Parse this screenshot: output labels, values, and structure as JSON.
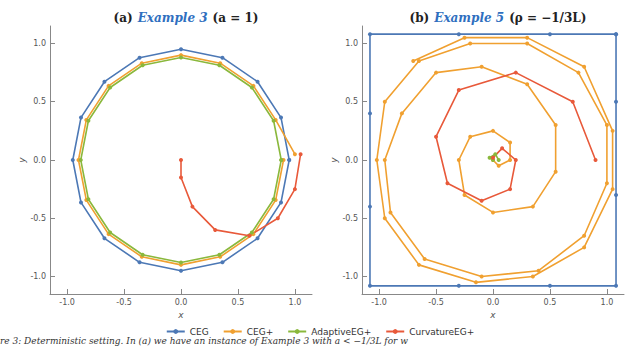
{
  "chart_data": [
    {
      "type": "line",
      "title": [
        "(a)",
        "Example 3",
        "(a = 1)"
      ],
      "x_label": "x",
      "y_label": "y",
      "xlim": [
        -1.15,
        1.15
      ],
      "ylim": [
        -1.15,
        1.15
      ],
      "xticks": [
        {
          "value": -1,
          "label": "-1.0"
        },
        {
          "value": -0.5,
          "label": "-0.5"
        },
        {
          "value": 0,
          "label": "0.0"
        },
        {
          "value": 0.5,
          "label": "0.5"
        },
        {
          "value": 1,
          "label": "1.0"
        }
      ],
      "yticks": [
        {
          "value": -1,
          "label": "-1.0"
        },
        {
          "value": -0.5,
          "label": "-0.5"
        },
        {
          "value": 0,
          "label": "0.0"
        },
        {
          "value": 0.5,
          "label": "0.5"
        },
        {
          "value": 1,
          "label": "1.0"
        }
      ],
      "legend": "bottom",
      "series": [
        {
          "name": "CEG",
          "color": "#4c78b5",
          "marker": "circle",
          "points": [
            [
              0.95,
              0
            ],
            [
              0.878,
              0.364
            ],
            [
              0.672,
              0.672
            ],
            [
              0.364,
              0.878
            ],
            [
              0,
              0.95
            ],
            [
              -0.364,
              0.878
            ],
            [
              -0.672,
              0.672
            ],
            [
              -0.878,
              0.364
            ],
            [
              -0.95,
              0
            ],
            [
              -0.878,
              -0.364
            ],
            [
              -0.672,
              -0.672
            ],
            [
              -0.364,
              -0.878
            ],
            [
              0,
              -0.95
            ],
            [
              0.364,
              -0.878
            ],
            [
              0.672,
              -0.672
            ],
            [
              0.878,
              -0.364
            ],
            [
              0.95,
              0
            ]
          ]
        },
        {
          "name": "CEG+",
          "color": "#f0a030",
          "marker": "circle",
          "points": [
            [
              1.0,
              0.05
            ],
            [
              0.831,
              0.344
            ],
            [
              0.636,
              0.636
            ],
            [
              0.344,
              0.831
            ],
            [
              0,
              0.9
            ],
            [
              -0.344,
              0.831
            ],
            [
              -0.636,
              0.636
            ],
            [
              -0.831,
              0.344
            ],
            [
              -0.9,
              0
            ],
            [
              -0.831,
              -0.344
            ],
            [
              -0.636,
              -0.636
            ],
            [
              -0.344,
              -0.831
            ],
            [
              0,
              -0.9
            ],
            [
              0.344,
              -0.831
            ],
            [
              0.636,
              -0.636
            ],
            [
              0.831,
              -0.344
            ],
            [
              0.9,
              0
            ]
          ]
        },
        {
          "name": "AdaptiveEG+",
          "color": "#8ab83c",
          "marker": "circle",
          "points": [
            [
              0.88,
              0
            ],
            [
              0.813,
              0.337
            ],
            [
              0.622,
              0.622
            ],
            [
              0.337,
              0.813
            ],
            [
              0,
              0.88
            ],
            [
              -0.337,
              0.813
            ],
            [
              -0.622,
              0.622
            ],
            [
              -0.813,
              0.337
            ],
            [
              -0.88,
              0
            ],
            [
              -0.813,
              -0.337
            ],
            [
              -0.622,
              -0.622
            ],
            [
              -0.337,
              -0.813
            ],
            [
              0,
              -0.88
            ],
            [
              0.337,
              -0.813
            ],
            [
              0.622,
              -0.622
            ],
            [
              0.813,
              -0.337
            ],
            [
              0.88,
              0
            ]
          ]
        },
        {
          "name": "CurvatureEG+",
          "color": "#e8593a",
          "marker": "circle",
          "points": [
            [
              1.05,
              0.05
            ],
            [
              1.0,
              -0.25
            ],
            [
              0.85,
              -0.5
            ],
            [
              0.6,
              -0.65
            ],
            [
              0.3,
              -0.6
            ],
            [
              0.1,
              -0.4
            ],
            [
              0.0,
              -0.15
            ],
            [
              0.0,
              0.0
            ]
          ]
        }
      ]
    },
    {
      "type": "line",
      "title": [
        "(b)",
        "Example 5",
        "(ρ = −1/3L)"
      ],
      "x_label": "x",
      "y_label": "y",
      "xlim": [
        -1.15,
        1.15
      ],
      "ylim": [
        -1.15,
        1.15
      ],
      "xticks": [
        {
          "value": -1,
          "label": "-1.0"
        },
        {
          "value": -0.5,
          "label": "-0.5"
        },
        {
          "value": 0,
          "label": "0.0"
        },
        {
          "value": 0.5,
          "label": "0.5"
        },
        {
          "value": 1,
          "label": "1.0"
        }
      ],
      "yticks": [
        {
          "value": -1,
          "label": "-1.0"
        },
        {
          "value": -0.5,
          "label": "-0.5"
        },
        {
          "value": 0,
          "label": "0.0"
        },
        {
          "value": 0.5,
          "label": "0.5"
        },
        {
          "value": 1,
          "label": "1.0"
        }
      ],
      "legend": "bottom",
      "series": [
        {
          "name": "CEG",
          "color": "#4c78b5",
          "marker": "circle",
          "points": [
            [
              1.08,
              1.08
            ],
            [
              0.5,
              1.08
            ],
            [
              -0.3,
              1.08
            ],
            [
              -1.08,
              1.08
            ],
            [
              -1.08,
              0.4
            ],
            [
              -1.08,
              -0.4
            ],
            [
              -1.08,
              -1.08
            ],
            [
              -0.3,
              -1.08
            ],
            [
              0.5,
              -1.08
            ],
            [
              1.08,
              -1.08
            ],
            [
              1.08,
              -0.3
            ],
            [
              1.08,
              0.5
            ],
            [
              1.08,
              1.08
            ]
          ]
        },
        {
          "name": "CEG+",
          "color": "#f0a030",
          "marker": "circle",
          "points": [
            [
              0,
              0
            ],
            [
              0.05,
              -0.05
            ],
            [
              0.15,
              0
            ],
            [
              0.15,
              0.15
            ],
            [
              0,
              0.25
            ],
            [
              -0.2,
              0.2
            ],
            [
              -0.3,
              0
            ],
            [
              -0.25,
              -0.3
            ],
            [
              0,
              -0.45
            ],
            [
              0.35,
              -0.4
            ],
            [
              0.55,
              -0.1
            ],
            [
              0.55,
              0.3
            ],
            [
              0.3,
              0.65
            ],
            [
              -0.1,
              0.8
            ],
            [
              -0.5,
              0.75
            ],
            [
              -0.8,
              0.4
            ],
            [
              -0.95,
              0
            ],
            [
              -0.9,
              -0.45
            ],
            [
              -0.6,
              -0.85
            ],
            [
              -0.1,
              -1.0
            ],
            [
              0.4,
              -0.95
            ],
            [
              0.8,
              -0.65
            ],
            [
              1.0,
              -0.2
            ],
            [
              1.0,
              0.3
            ],
            [
              0.75,
              0.75
            ],
            [
              0.3,
              1.0
            ],
            [
              -0.2,
              1.0
            ],
            [
              -0.65,
              0.85
            ],
            [
              -0.95,
              0.5
            ],
            [
              -1.02,
              0
            ],
            [
              -0.95,
              -0.5
            ],
            [
              -0.65,
              -0.9
            ],
            [
              -0.15,
              -1.05
            ],
            [
              0.35,
              -1.0
            ],
            [
              0.8,
              -0.75
            ],
            [
              1.05,
              -0.25
            ],
            [
              1.05,
              0.25
            ],
            [
              0.8,
              0.8
            ],
            [
              0.3,
              1.05
            ],
            [
              -0.25,
              1.05
            ],
            [
              -0.7,
              0.85
            ]
          ]
        },
        {
          "name": "AdaptiveEG+",
          "color": "#8ab83c",
          "marker": "circle",
          "points": [
            [
              0.05,
              0
            ],
            [
              0.02,
              0.05
            ],
            [
              -0.03,
              0.02
            ],
            [
              0,
              0
            ]
          ]
        },
        {
          "name": "CurvatureEG+",
          "color": "#e8593a",
          "marker": "circle",
          "points": [
            [
              0.9,
              0
            ],
            [
              0.7,
              0.5
            ],
            [
              0.2,
              0.75
            ],
            [
              -0.3,
              0.6
            ],
            [
              -0.5,
              0.2
            ],
            [
              -0.4,
              -0.2
            ],
            [
              -0.1,
              -0.35
            ],
            [
              0.15,
              -0.25
            ],
            [
              0.2,
              0
            ],
            [
              0.08,
              0.1
            ],
            [
              0,
              0.02
            ]
          ]
        }
      ]
    }
  ],
  "caption": "re 3: Deterministic setting. In (a) we have an instance of Example 3 with a < −1/3L for w"
}
